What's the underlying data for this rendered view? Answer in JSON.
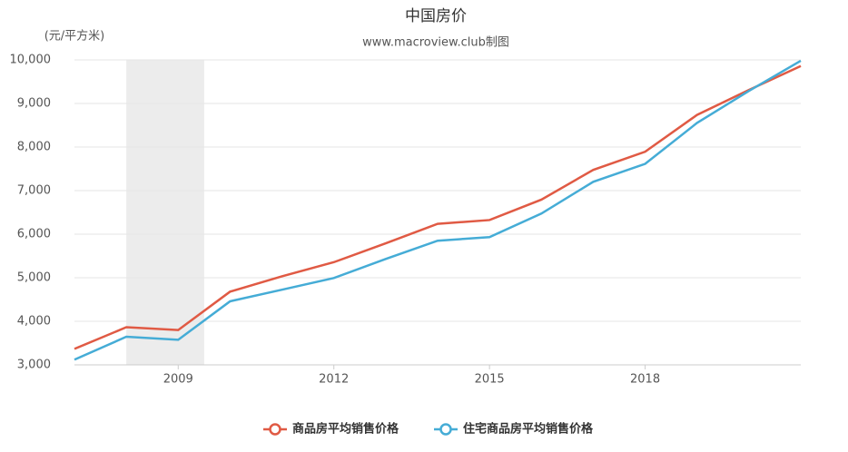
{
  "chart_data": {
    "type": "line",
    "title": "中国房价",
    "subtitle": "www.macroview.club制图",
    "y_label": "(元/平方米)",
    "x": [
      2007,
      2008,
      2009,
      2010,
      2011,
      2012,
      2013,
      2014,
      2015,
      2016,
      2017,
      2018,
      2019,
      2020,
      2021
    ],
    "series": [
      {
        "name": "商品房平均销售价格",
        "color": "#e05a44",
        "values": [
          3367,
          3864,
          3800,
          4681,
          5032,
          5357,
          5791,
          6237,
          6324,
          6793,
          7476,
          7892,
          8737,
          9310,
          9860
        ]
      },
      {
        "name": "住宅商品房平均销售价格",
        "color": "#45acd6",
        "values": [
          3119,
          3645,
          3576,
          4459,
          4725,
          4993,
          5430,
          5850,
          5933,
          6473,
          7203,
          7614,
          8553,
          9287,
          9980
        ]
      }
    ],
    "shaded_range": [
      2008,
      2009.5
    ],
    "xlim": [
      2007,
      2021
    ],
    "xticks": [
      2009,
      2012,
      2015,
      2018
    ],
    "ylim": [
      3000,
      10000
    ],
    "yticks": [
      {
        "value": 3000,
        "label": "3,000"
      },
      {
        "value": 4000,
        "label": "4,000"
      },
      {
        "value": 5000,
        "label": "5,000"
      },
      {
        "value": 6000,
        "label": "6,000"
      },
      {
        "value": 7000,
        "label": "7,000"
      },
      {
        "value": 8000,
        "label": "8,000"
      },
      {
        "value": 9000,
        "label": "9,000"
      },
      {
        "value": 10000,
        "label": "10,000"
      }
    ],
    "grid": true,
    "legend": "bottom"
  }
}
